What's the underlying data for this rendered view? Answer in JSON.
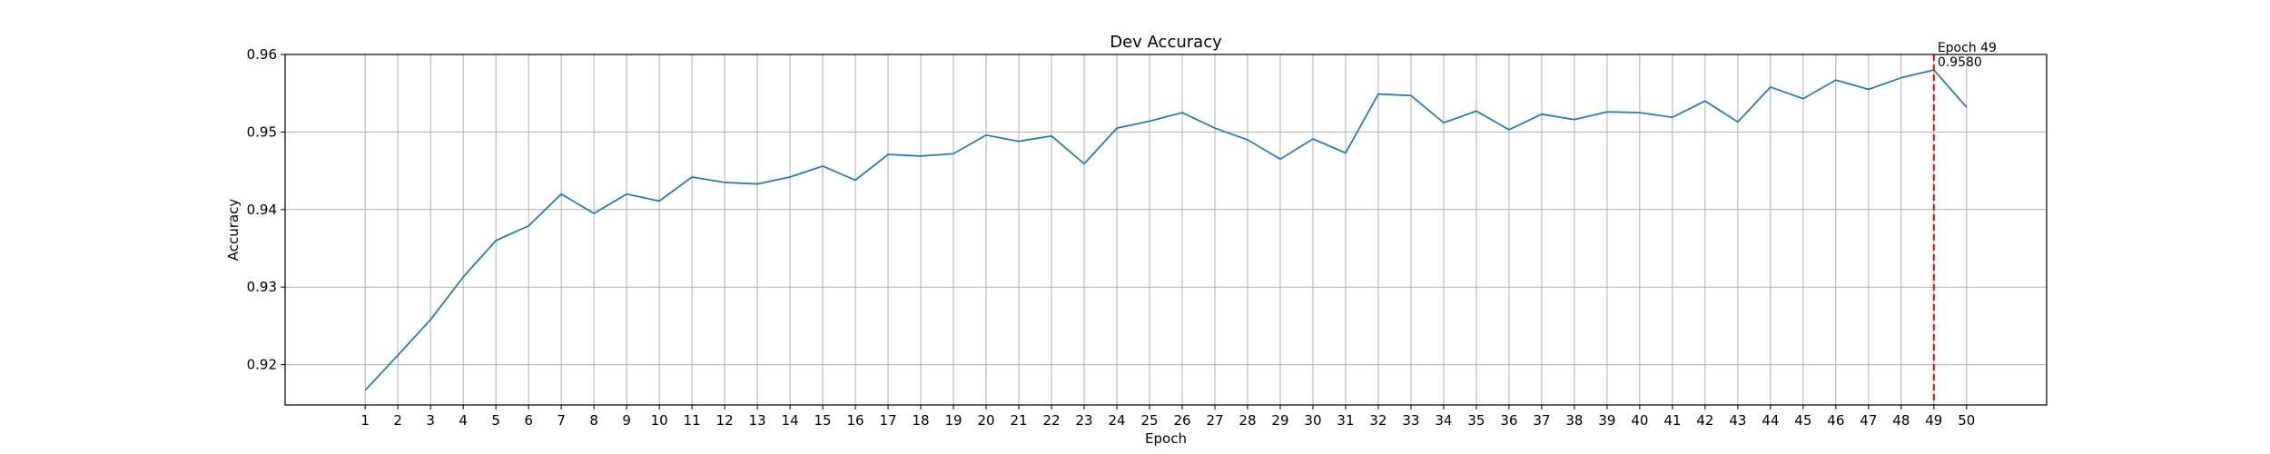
{
  "chart_data": {
    "type": "line",
    "title": "Dev Accuracy",
    "xlabel": "Epoch",
    "ylabel": "Accuracy",
    "x": [
      1,
      2,
      3,
      4,
      5,
      6,
      7,
      8,
      9,
      10,
      11,
      12,
      13,
      14,
      15,
      16,
      17,
      18,
      19,
      20,
      21,
      22,
      23,
      24,
      25,
      26,
      27,
      28,
      29,
      30,
      31,
      32,
      33,
      34,
      35,
      36,
      37,
      38,
      39,
      40,
      41,
      42,
      43,
      44,
      45,
      46,
      47,
      48,
      49,
      50
    ],
    "series": [
      {
        "color": "#1f77b4",
        "values": [
          0.9167,
          0.9212,
          0.9258,
          0.9313,
          0.936,
          0.9379,
          0.942,
          0.9395,
          0.942,
          0.9411,
          0.9442,
          0.9435,
          0.9433,
          0.9442,
          0.9456,
          0.9438,
          0.9471,
          0.9469,
          0.9472,
          0.9496,
          0.9488,
          0.9495,
          0.9459,
          0.9505,
          0.9514,
          0.9525,
          0.9505,
          0.949,
          0.9465,
          0.9491,
          0.9473,
          0.9549,
          0.9547,
          0.9512,
          0.9527,
          0.9503,
          0.9523,
          0.9516,
          0.9526,
          0.9525,
          0.9519,
          0.954,
          0.9513,
          0.9558,
          0.9543,
          0.9567,
          0.9555,
          0.957,
          0.958,
          0.9532
        ]
      }
    ],
    "xticks": [
      "1",
      "2",
      "3",
      "4",
      "5",
      "6",
      "7",
      "8",
      "9",
      "10",
      "11",
      "12",
      "13",
      "14",
      "15",
      "16",
      "17",
      "18",
      "19",
      "20",
      "21",
      "22",
      "23",
      "24",
      "25",
      "26",
      "27",
      "28",
      "29",
      "30",
      "31",
      "32",
      "33",
      "34",
      "35",
      "36",
      "37",
      "38",
      "39",
      "40",
      "41",
      "42",
      "43",
      "44",
      "45",
      "46",
      "47",
      "48",
      "49",
      "50"
    ],
    "yticks": [
      "0.92",
      "0.93",
      "0.94",
      "0.95",
      "0.96"
    ],
    "ylim": [
      0.9148,
      0.96
    ],
    "xlim": [
      -1.45,
      52.45
    ],
    "grid": true,
    "marker_line": {
      "x": 49,
      "color": "#ff0000",
      "style": "dashed"
    },
    "annotation": {
      "x": 49,
      "y": 0.958,
      "line1": "Epoch 49",
      "line2": "0.9580"
    }
  }
}
